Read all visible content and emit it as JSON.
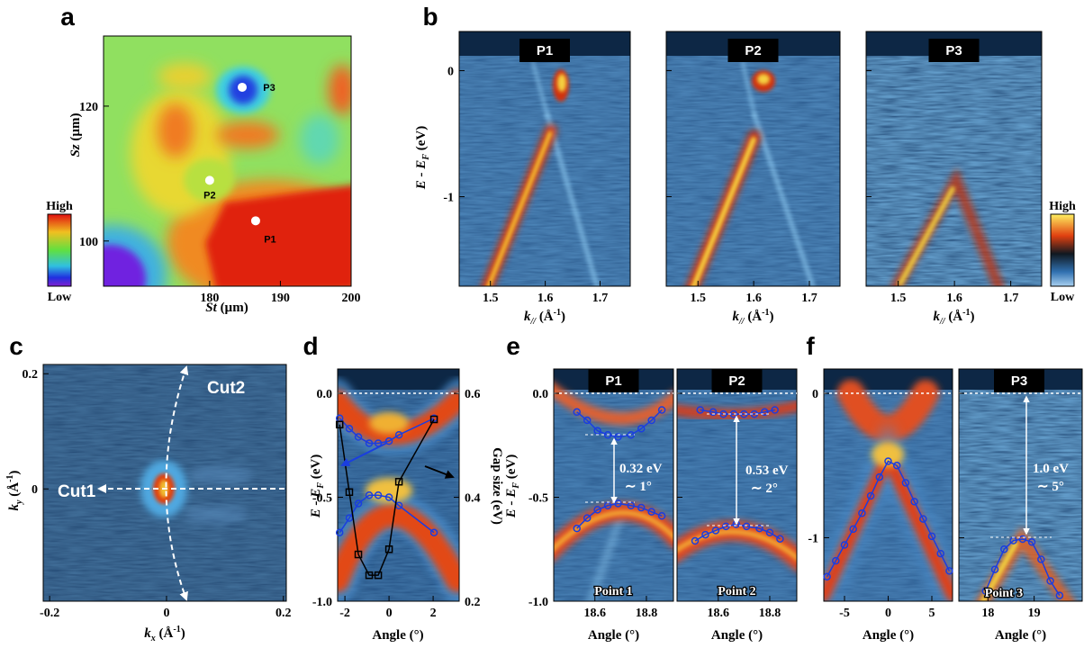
{
  "panel_labels": [
    "a",
    "b",
    "c",
    "d",
    "e",
    "f"
  ],
  "a": {
    "xlabel": [
      "St",
      " (µm)"
    ],
    "ylabel": [
      "Sz",
      " (µm)"
    ],
    "xlim": [
      165,
      200
    ],
    "xticks": [
      180,
      190,
      200
    ],
    "ylim": [
      93.3,
      130.4
    ],
    "yticks": [
      100,
      120
    ],
    "colorbar": [
      "High",
      "Low"
    ],
    "points": [
      {
        "name": "P1",
        "x": 186.5,
        "y": 103
      },
      {
        "name": "P2",
        "x": 180,
        "y": 109
      },
      {
        "name": "P3",
        "x": 184.6,
        "y": 122.8
      }
    ]
  },
  "b": {
    "panels": [
      "P1",
      "P2",
      "P3"
    ],
    "ylabel": [
      "E - E",
      "F",
      " (eV)"
    ],
    "xlabel": [
      "k",
      "//",
      " (Å",
      "-1",
      ")"
    ],
    "xlim": [
      1.443,
      1.755
    ],
    "xticks": [
      1.5,
      1.6,
      1.7
    ],
    "ylim": [
      -1.71,
      0.31
    ],
    "yticks": [
      -1,
      0
    ],
    "colorbar": [
      "High",
      "Low"
    ]
  },
  "c": {
    "xlabel": [
      "k",
      "x",
      " (Å",
      "-1",
      ")"
    ],
    "ylabel": [
      "k",
      "y",
      " (Å",
      "-1",
      ")"
    ],
    "xlim": [
      -0.211,
      0.205
    ],
    "xticks": [
      -0.2,
      0,
      0.2
    ],
    "ylim": [
      -0.195,
      0.216
    ],
    "yticks": [
      0,
      0.2
    ],
    "cuts": [
      "Cut1",
      "Cut2"
    ]
  },
  "d": {
    "xlabel": "Angle (°)",
    "ylabel": [
      "E - E",
      "F",
      " (eV)"
    ],
    "y2label": "Gap size (eV)",
    "xlim": [
      -2.33,
      3.18
    ],
    "xticks": [
      -2,
      0,
      2
    ],
    "ylim": [
      -1.0,
      0.117
    ],
    "yticks": [
      {
        "value": -1,
        "label": "-1.0"
      },
      -0.5,
      {
        "value": 0,
        "label": "0.0"
      }
    ],
    "y2lim": [
      0.2,
      0.647
    ],
    "y2ticks": [
      0.2,
      0.4,
      0.6
    ],
    "angle": [
      -2.24,
      -1.8,
      -1.39,
      -0.9,
      -0.49,
      0,
      0.45,
      2.04
    ],
    "upper": [
      -0.12,
      -0.17,
      -0.21,
      -0.24,
      -0.24,
      -0.23,
      -0.2,
      -0.12
    ],
    "lower": [
      -0.67,
      -0.6,
      -0.53,
      -0.49,
      -0.49,
      -0.5,
      -0.54,
      -0.67
    ],
    "gap": [
      0.54,
      0.41,
      0.29,
      0.25,
      0.25,
      0.3,
      0.43,
      0.55
    ]
  },
  "e": {
    "xlabel": "Angle (°)",
    "ylabel": [
      "E - E",
      "F",
      " (eV)"
    ],
    "xlim": [
      18.44,
      18.905
    ],
    "xticks": [
      18.6,
      18.8
    ],
    "ylim": [
      -1.0,
      0.117
    ],
    "yticks": [
      {
        "value": -1,
        "label": "-1.0"
      },
      -0.5,
      {
        "value": 0,
        "label": "0.0"
      }
    ],
    "panels": [
      {
        "name": "P1",
        "annotation": [
          "0.32 eV",
          "∼ 1°"
        ],
        "point": "Point 1",
        "upper": {
          "x": [
            18.53,
            18.57,
            18.61,
            18.65,
            18.69,
            18.74,
            18.78,
            18.82,
            18.86
          ],
          "y": [
            -0.09,
            -0.13,
            -0.18,
            -0.2,
            -0.21,
            -0.2,
            -0.17,
            -0.13,
            -0.08
          ]
        },
        "lower": {
          "x": [
            18.53,
            18.57,
            18.61,
            18.65,
            18.69,
            18.74,
            18.78,
            18.82,
            18.86
          ],
          "y": [
            -0.65,
            -0.6,
            -0.56,
            -0.54,
            -0.53,
            -0.54,
            -0.55,
            -0.57,
            -0.59
          ]
        }
      },
      {
        "name": "P2",
        "annotation": [
          "0.53 eV",
          "∼ 2°"
        ],
        "point": "Point 2",
        "upper": {
          "x": [
            18.53,
            18.58,
            18.62,
            18.66,
            18.7,
            18.74,
            18.78,
            18.82
          ],
          "y": [
            -0.08,
            -0.09,
            -0.1,
            -0.1,
            -0.1,
            -0.1,
            -0.09,
            -0.08
          ]
        },
        "lower": {
          "x": [
            18.51,
            18.55,
            18.59,
            18.63,
            18.67,
            18.71,
            18.76,
            18.8,
            18.84
          ],
          "y": [
            -0.71,
            -0.68,
            -0.66,
            -0.64,
            -0.63,
            -0.64,
            -0.65,
            -0.67,
            -0.7
          ]
        }
      }
    ]
  },
  "f": {
    "xlabel": "Angle (°)",
    "ylim": [
      -1.44,
      0.169
    ],
    "yticks": [
      -1,
      0
    ],
    "panels": [
      {
        "xlim": [
          -7.37,
          7.37
        ],
        "xticks": [
          -5,
          0,
          5
        ],
        "x": [
          -7,
          -6,
          -5,
          -4,
          -3,
          -2,
          -1,
          0,
          1,
          2,
          3,
          4,
          5,
          6,
          7
        ],
        "y": [
          -1.27,
          -1.16,
          -1.05,
          -0.94,
          -0.83,
          -0.71,
          -0.58,
          -0.47,
          -0.5,
          -0.62,
          -0.75,
          -0.87,
          -0.99,
          -1.11,
          -1.23
        ]
      },
      {
        "name": "P3",
        "annotation": [
          "1.0 eV",
          "∼ 5°"
        ],
        "point": "Point 3",
        "xlim": [
          17.37,
          20.04
        ],
        "xticks": [
          18,
          19
        ],
        "x": [
          17.95,
          18.15,
          18.35,
          18.55,
          18.75,
          18.95,
          19.15,
          19.35,
          19.55
        ],
        "y": [
          -1.37,
          -1.22,
          -1.08,
          -1.02,
          -1.01,
          -1.03,
          -1.15,
          -1.3,
          -1.4
        ]
      }
    ]
  }
}
